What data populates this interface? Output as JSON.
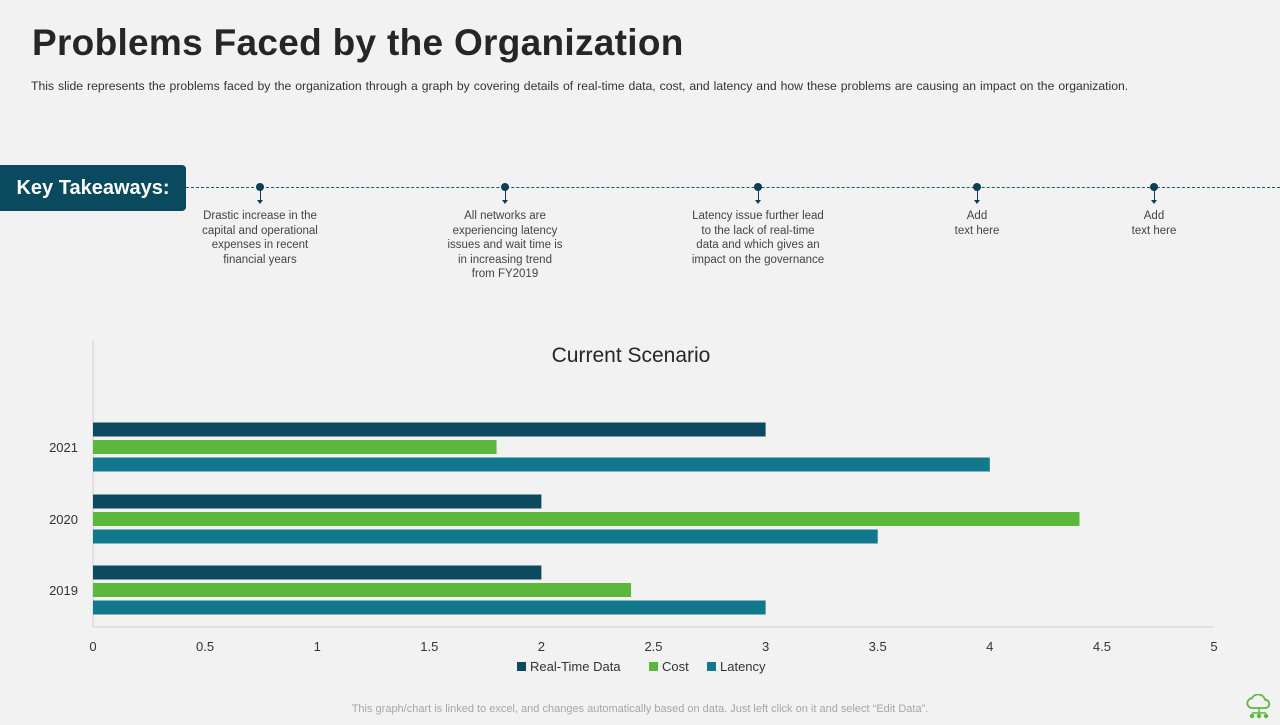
{
  "title": "Problems Faced by the Organization",
  "subtitle": "This slide represents the problems faced by the organization through a graph by covering details of real-time data, cost, and latency and how these problems are causing an impact on the organization.",
  "key_takeaways": {
    "label": "Key Takeaways:",
    "items": [
      "Drastic increase in the\ncapital and operational\nexpenses in recent\nfinancial years",
      "All networks are\nexperiencing latency\nissues and wait time is\nin increasing trend\nfrom FY2019",
      "Latency issue further lead\nto the lack of real-time\ndata and which gives an\nimpact on the governance",
      "Add\ntext here",
      "Add\ntext here"
    ]
  },
  "footer_note": "This graph/chart is linked to excel, and changes automatically based on data. Just left click on it and select “Edit Data”.",
  "colors": {
    "real_time": "#0d4a60",
    "cost": "#5cb83c",
    "latency": "#12788d",
    "badge": "#0a4a5e"
  },
  "icons": {
    "corner": "cloud-network-icon"
  },
  "chart_data": {
    "type": "bar",
    "orientation": "horizontal",
    "title": "Current Scenario",
    "categories": [
      "2019",
      "2020",
      "2021"
    ],
    "series": [
      {
        "name": "Real-Time Data",
        "values": [
          2,
          2,
          3
        ],
        "color": "#0d4a60"
      },
      {
        "name": "Cost",
        "values": [
          2.4,
          4.4,
          1.8
        ],
        "color": "#5cb83c"
      },
      {
        "name": "Latency",
        "values": [
          3,
          3.5,
          4
        ],
        "color": "#12788d"
      }
    ],
    "xlim": [
      0,
      5
    ],
    "xticks": [
      "0",
      "0.5",
      "1",
      "1.5",
      "2",
      "2.5",
      "3",
      "3.5",
      "4",
      "4.5",
      "5"
    ],
    "xlabel": "",
    "ylabel": "",
    "grid": false,
    "legend": "bottom"
  }
}
